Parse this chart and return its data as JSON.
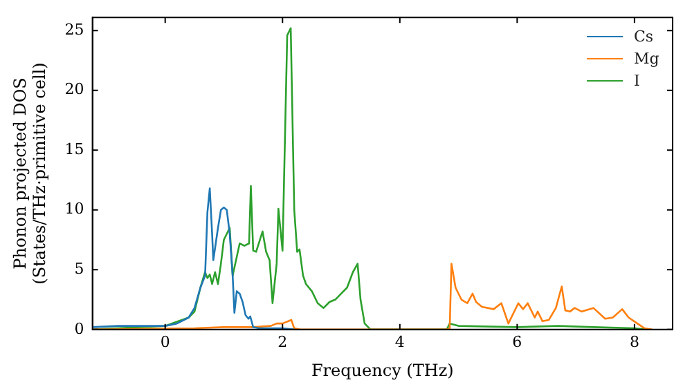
{
  "chart_data": {
    "type": "line",
    "xlabel": "Frequency (THz)",
    "ylabel": "Phonon projected DOS\n(States/THz·primitive cell)",
    "xlim": [
      -1.24,
      8.65
    ],
    "ylim": [
      0,
      26.1
    ],
    "xticks": [
      0,
      2,
      4,
      6,
      8
    ],
    "yticks": [
      0,
      5,
      10,
      15,
      20,
      25
    ],
    "grid": false,
    "legend": "top right",
    "marker": "none",
    "line_style": "solid",
    "series": [
      {
        "name": "Cs",
        "color": "#1f77b4",
        "x": [
          -1.24,
          -0.8,
          -0.2,
          0,
          0.2,
          0.4,
          0.5,
          0.6,
          0.68,
          0.72,
          0.76,
          0.8,
          0.82,
          0.9,
          0.95,
          1.0,
          1.05,
          1.1,
          1.15,
          1.18,
          1.22,
          1.27,
          1.32,
          1.37,
          1.42,
          1.45,
          1.5,
          1.6,
          1.8,
          2.0,
          2.2
        ],
        "values": [
          0.2,
          0.3,
          0.3,
          0.3,
          0.5,
          1.0,
          1.8,
          3.5,
          4.5,
          9.8,
          11.8,
          8,
          5.8,
          8.5,
          10,
          10.2,
          10,
          8,
          4.5,
          1.4,
          3.2,
          3,
          2.3,
          1.2,
          0.9,
          1.1,
          0.2,
          0.1,
          0.1,
          0.1,
          0
        ]
      },
      {
        "name": "Mg",
        "color": "#ff7f0e",
        "x": [
          -1.24,
          0.5,
          1.0,
          1.5,
          1.8,
          1.9,
          2.0,
          2.15,
          2.2,
          2.3,
          4.8,
          4.85,
          4.88,
          4.95,
          5.05,
          5.15,
          5.24,
          5.3,
          5.4,
          5.6,
          5.73,
          5.85,
          6.02,
          6.1,
          6.18,
          6.3,
          6.35,
          6.43,
          6.54,
          6.66,
          6.76,
          6.82,
          6.9,
          6.98,
          7.1,
          7.3,
          7.5,
          7.63,
          7.79,
          7.9,
          8.05,
          8.17,
          8.3
        ],
        "values": [
          0,
          0.1,
          0.2,
          0.2,
          0.3,
          0.5,
          0.5,
          0.8,
          0.1,
          0,
          0,
          0.1,
          5.5,
          3.5,
          2.5,
          2.2,
          3.0,
          2.3,
          1.9,
          1.7,
          2.2,
          0.5,
          2.2,
          1.7,
          2.2,
          1.0,
          1.5,
          0.7,
          0.8,
          1.8,
          3.6,
          1.6,
          1.5,
          1.8,
          1.5,
          1.8,
          0.9,
          1.0,
          1.7,
          1.0,
          0.5,
          0.1,
          0
        ]
      },
      {
        "name": "I",
        "color": "#2ca02c",
        "x": [
          -1.24,
          0,
          0.4,
          0.5,
          0.6,
          0.68,
          0.72,
          0.76,
          0.8,
          0.85,
          0.9,
          0.95,
          1.0,
          1.1,
          1.15,
          1.27,
          1.35,
          1.43,
          1.46,
          1.5,
          1.55,
          1.66,
          1.72,
          1.78,
          1.83,
          1.9,
          1.93,
          2.0,
          2.08,
          2.14,
          2.2,
          2.25,
          2.29,
          2.35,
          2.4,
          2.5,
          2.6,
          2.7,
          2.8,
          2.9,
          3.0,
          3.1,
          3.2,
          3.28,
          3.33,
          3.4,
          3.5,
          4.8,
          4.85,
          5.0,
          6.0,
          6.7,
          7.3,
          8.0,
          8.2
        ],
        "values": [
          0,
          0.3,
          1.0,
          1.5,
          3.5,
          4.8,
          4.3,
          4.6,
          3.8,
          4.8,
          3.8,
          5.5,
          7.5,
          8.5,
          4.5,
          7.2,
          7.0,
          7.2,
          12.0,
          6.6,
          6.5,
          8.2,
          6.5,
          5.8,
          2.2,
          5.5,
          10.1,
          6.6,
          24.6,
          25.2,
          10,
          6.5,
          6.7,
          4.5,
          3.8,
          3.2,
          2.2,
          1.8,
          2.3,
          2.5,
          3.0,
          3.5,
          4.8,
          5.5,
          2.5,
          0.5,
          0,
          0,
          0.5,
          0.3,
          0.2,
          0.3,
          0.2,
          0.1,
          0
        ]
      }
    ]
  }
}
